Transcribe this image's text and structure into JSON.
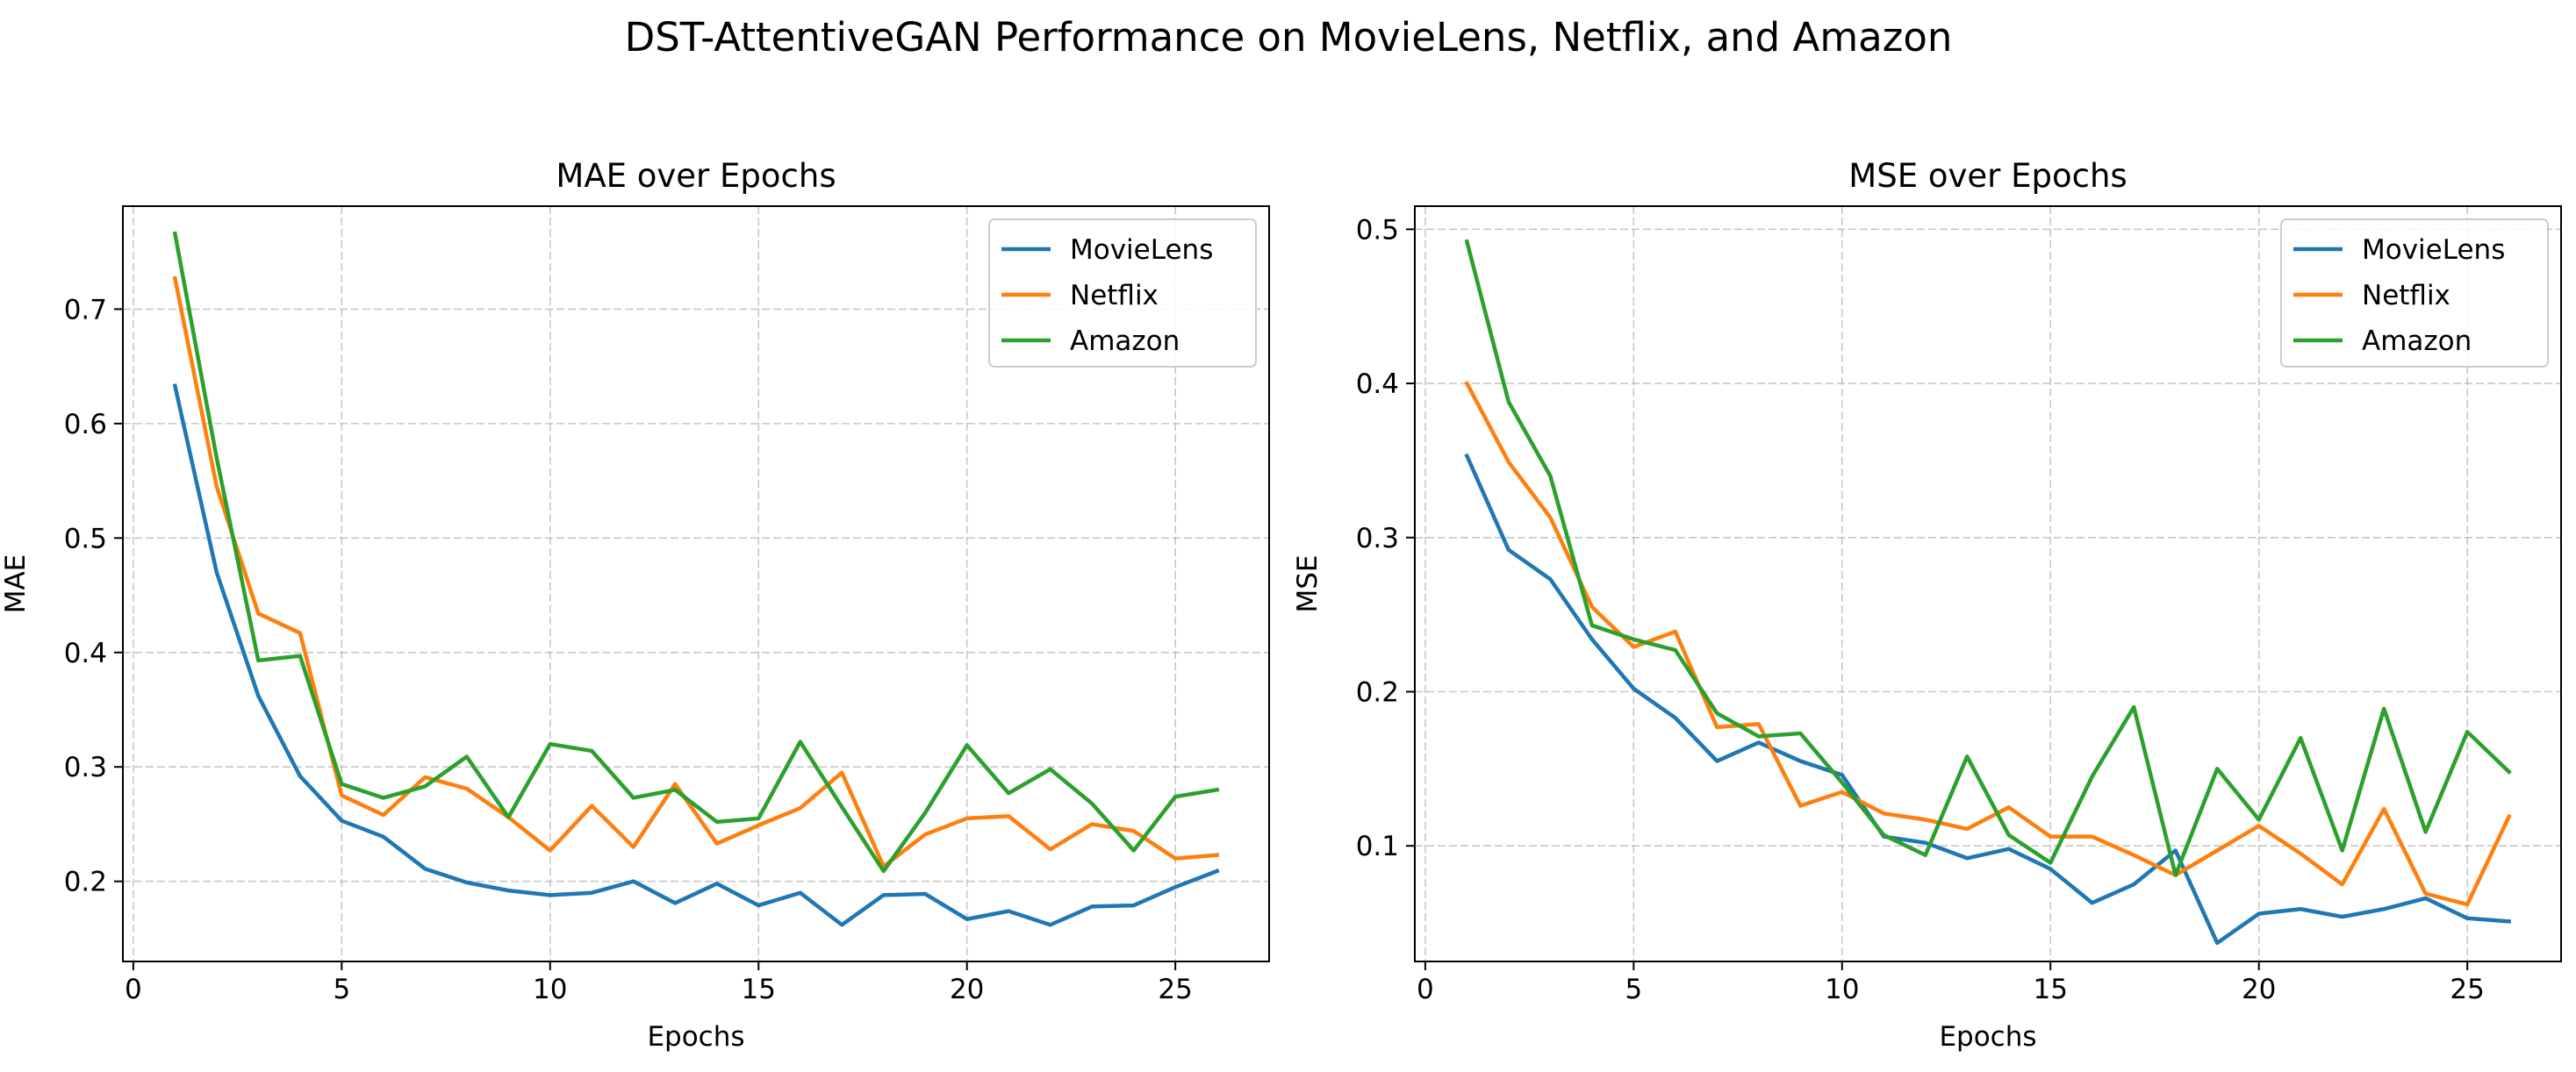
{
  "suptitle": "DST-AttentiveGAN Performance on MovieLens, Netflix, and Amazon",
  "chart_data": [
    {
      "type": "line",
      "title": "MAE over Epochs",
      "xlabel": "Epochs",
      "ylabel": "MAE",
      "xlim": [
        -0.25,
        27.25
      ],
      "ylim": [
        0.13,
        0.79
      ],
      "xticks": [
        0,
        5,
        10,
        15,
        20,
        25
      ],
      "xtick_labels": [
        "0",
        "5",
        "10",
        "15",
        "20",
        "25"
      ],
      "yticks": [
        0.2,
        0.3,
        0.4,
        0.5,
        0.6,
        0.7
      ],
      "ytick_labels": [
        "0.2",
        "0.3",
        "0.4",
        "0.5",
        "0.6",
        "0.7"
      ],
      "grid": true,
      "legend": "upper right",
      "x": [
        1,
        2,
        3,
        4,
        5,
        6,
        7,
        8,
        9,
        10,
        11,
        12,
        13,
        14,
        15,
        16,
        17,
        18,
        19,
        20,
        21,
        22,
        23,
        24,
        25,
        26
      ],
      "series": [
        {
          "name": "MovieLens",
          "color": "#1f77b4",
          "values": [
            0.633,
            0.47,
            0.362,
            0.292,
            0.253,
            0.239,
            0.211,
            0.199,
            0.192,
            0.188,
            0.19,
            0.2,
            0.181,
            0.198,
            0.179,
            0.19,
            0.162,
            0.188,
            0.189,
            0.167,
            0.174,
            0.162,
            0.178,
            0.179,
            0.195,
            0.209
          ]
        },
        {
          "name": "Netflix",
          "color": "#ff7f0e",
          "values": [
            0.727,
            0.545,
            0.434,
            0.417,
            0.275,
            0.258,
            0.291,
            0.281,
            0.256,
            0.227,
            0.266,
            0.23,
            0.285,
            0.233,
            0.249,
            0.264,
            0.295,
            0.213,
            0.241,
            0.255,
            0.257,
            0.228,
            0.25,
            0.244,
            0.22,
            0.223
          ]
        },
        {
          "name": "Amazon",
          "color": "#2ca02c",
          "values": [
            0.766,
            0.57,
            0.393,
            0.397,
            0.285,
            0.273,
            0.283,
            0.309,
            0.256,
            0.32,
            0.314,
            0.273,
            0.28,
            0.252,
            0.255,
            0.322,
            0.265,
            0.209,
            0.26,
            0.319,
            0.277,
            0.298,
            0.268,
            0.227,
            0.274,
            0.28
          ]
        }
      ]
    },
    {
      "type": "line",
      "title": "MSE over Epochs",
      "xlabel": "Epochs",
      "ylabel": "MSE",
      "xlim": [
        -0.25,
        27.25
      ],
      "ylim": [
        0.025,
        0.515
      ],
      "xticks": [
        0,
        5,
        10,
        15,
        20,
        25
      ],
      "xtick_labels": [
        "0",
        "5",
        "10",
        "15",
        "20",
        "25"
      ],
      "yticks": [
        0.1,
        0.2,
        0.3,
        0.4,
        0.5
      ],
      "ytick_labels": [
        "0.1",
        "0.2",
        "0.3",
        "0.4",
        "0.5"
      ],
      "grid": true,
      "legend": "upper right",
      "x": [
        1,
        2,
        3,
        4,
        5,
        6,
        7,
        8,
        9,
        10,
        11,
        12,
        13,
        14,
        15,
        16,
        17,
        18,
        19,
        20,
        21,
        22,
        23,
        24,
        25,
        26
      ],
      "series": [
        {
          "name": "MovieLens",
          "color": "#1f77b4",
          "values": [
            0.353,
            0.292,
            0.273,
            0.234,
            0.202,
            0.183,
            0.155,
            0.167,
            0.155,
            0.146,
            0.106,
            0.102,
            0.092,
            0.098,
            0.085,
            0.063,
            0.075,
            0.097,
            0.037,
            0.056,
            0.059,
            0.054,
            0.059,
            0.066,
            0.053,
            0.051
          ]
        },
        {
          "name": "Netflix",
          "color": "#ff7f0e",
          "values": [
            0.4,
            0.349,
            0.313,
            0.255,
            0.229,
            0.239,
            0.177,
            0.179,
            0.126,
            0.135,
            0.121,
            0.117,
            0.111,
            0.125,
            0.106,
            0.106,
            0.094,
            0.081,
            0.097,
            0.113,
            0.095,
            0.075,
            0.124,
            0.069,
            0.062,
            0.119
          ]
        },
        {
          "name": "Amazon",
          "color": "#2ca02c",
          "values": [
            0.492,
            0.388,
            0.34,
            0.243,
            0.234,
            0.227,
            0.186,
            0.171,
            0.173,
            0.141,
            0.107,
            0.094,
            0.158,
            0.107,
            0.089,
            0.145,
            0.19,
            0.081,
            0.15,
            0.117,
            0.17,
            0.097,
            0.189,
            0.109,
            0.174,
            0.148
          ]
        }
      ]
    }
  ]
}
